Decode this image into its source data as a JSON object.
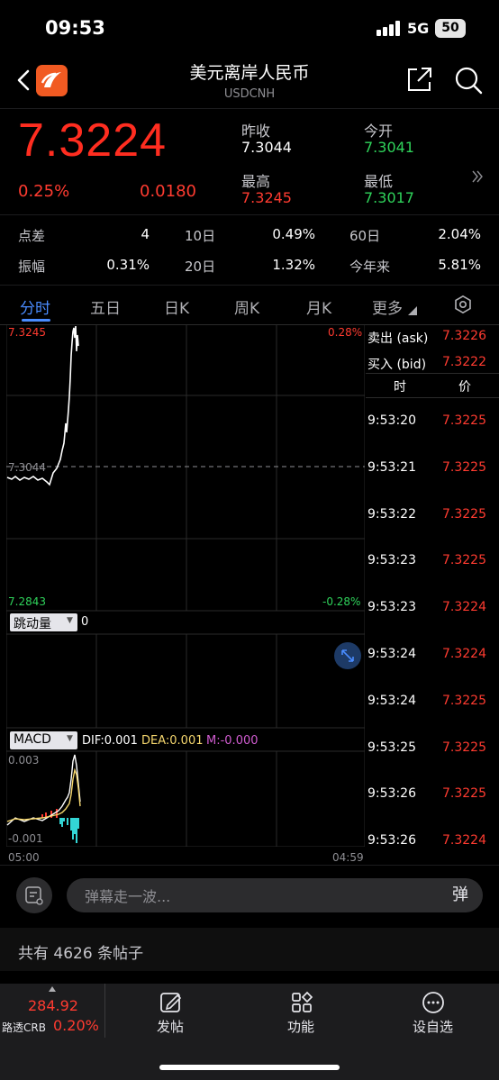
{
  "status": {
    "time": "09:53",
    "network": "5G",
    "battery": "50"
  },
  "header": {
    "title": "美元离岸人民币",
    "subtitle": "USDCNH"
  },
  "quote": {
    "price": "7.3224",
    "change_pct": "0.25%",
    "change": "0.0180",
    "prev_close_label": "昨收",
    "prev_close": "7.3044",
    "open_label": "今开",
    "open": "7.3041",
    "high_label": "最高",
    "high": "7.3245",
    "low_label": "最低",
    "low": "7.3017"
  },
  "stats": [
    {
      "label": "点差",
      "value": "4",
      "label2": "10日",
      "value2": "0.49%",
      "label3": "60日",
      "value3": "2.04%"
    },
    {
      "label": "振幅",
      "value": "0.31%",
      "label2": "20日",
      "value2": "1.32%",
      "label3": "今年来",
      "value3": "5.81%"
    }
  ],
  "tabs": [
    "分时",
    "五日",
    "日K",
    "周K",
    "月K",
    "更多"
  ],
  "chart": {
    "top_left": "7.3245",
    "top_right": "0.28%",
    "mid_left": "7.3044",
    "bottom_left": "7.2843",
    "bottom_right": "-0.28%",
    "vol_label": "跳动量",
    "vol_value": "0",
    "macd_label": "MACD",
    "dif": "DIF:0.001",
    "dea": "DEA:0.001",
    "m": "M:-0.000",
    "macd_top": "0.003",
    "macd_bottom": "-0.001",
    "time_start": "05:00",
    "time_end": "04:59"
  },
  "orderbook": {
    "ask_label": "卖出 (ask)",
    "ask": "7.3226",
    "bid_label": "买入 (bid)",
    "bid": "7.3222",
    "col_time": "时",
    "col_price": "价"
  },
  "trades": [
    {
      "time": "9:53:20",
      "price": "7.3225"
    },
    {
      "time": "9:53:21",
      "price": "7.3225"
    },
    {
      "time": "9:53:22",
      "price": "7.3225"
    },
    {
      "time": "9:53:23",
      "price": "7.3225"
    },
    {
      "time": "9:53:23",
      "price": "7.3224"
    },
    {
      "time": "9:53:24",
      "price": "7.3224"
    },
    {
      "time": "9:53:24",
      "price": "7.3225"
    },
    {
      "time": "9:53:25",
      "price": "7.3225"
    },
    {
      "time": "9:53:26",
      "price": "7.3225"
    },
    {
      "time": "9:53:26",
      "price": "7.3224"
    }
  ],
  "comment": {
    "placeholder": "弹幕走一波...",
    "danmu": "弹"
  },
  "posts": "共有 4626 条帖子",
  "bottom": {
    "index_value": "284.92",
    "index_name": "路透CRB",
    "index_pct": "0.20%",
    "post": "发帖",
    "func": "功能",
    "custom": "设自选"
  },
  "colors": {
    "up": "#ff3b30",
    "down": "#2fd35b",
    "accent": "#4a8cff",
    "background": "#000000"
  }
}
